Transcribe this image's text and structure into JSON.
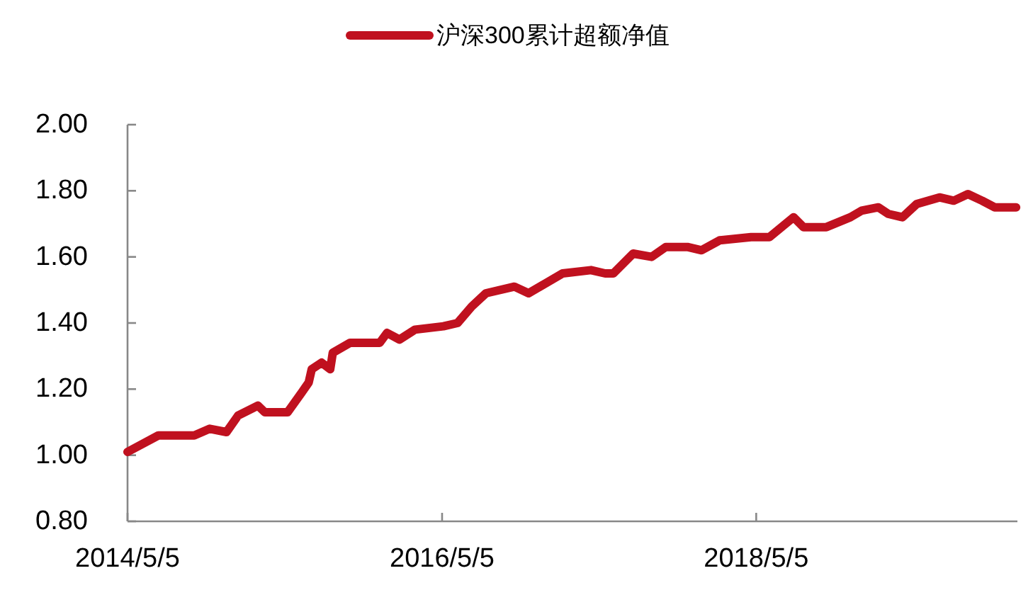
{
  "chart_data": {
    "type": "line",
    "legend": "top",
    "grid": false,
    "marker": "none",
    "line_style": "solid",
    "x": [
      "2014-05-05",
      "2014-07-16",
      "2014-10-07",
      "2014-11-12",
      "2014-12-21",
      "2015-01-17",
      "2015-03-04",
      "2015-03-20",
      "2015-05-12",
      "2015-06-14",
      "2015-06-30",
      "2015-07-07",
      "2015-07-30",
      "2015-08-19",
      "2015-08-25",
      "2015-10-04",
      "2015-12-12",
      "2015-12-29",
      "2016-01-27",
      "2016-03-03",
      "2016-05-08",
      "2016-06-10",
      "2016-07-13",
      "2016-08-15",
      "2016-10-20",
      "2016-11-22",
      "2017-02-09",
      "2017-04-16",
      "2017-05-19",
      "2017-06-07",
      "2017-07-23",
      "2017-09-04",
      "2017-10-07",
      "2017-11-26",
      "2017-12-29",
      "2018-02-09",
      "2018-04-23",
      "2018-06-05",
      "2018-07-31",
      "2018-08-23",
      "2018-10-15",
      "2018-12-10",
      "2019-01-05",
      "2019-02-13",
      "2019-03-08",
      "2019-04-10",
      "2019-05-13",
      "2019-07-05",
      "2019-08-07",
      "2019-09-09",
      "2019-10-12",
      "2019-11-10",
      "2019-12-30"
    ],
    "series": [
      {
        "name": "沪深300累计超额净值",
        "color": "#c0111f",
        "values": [
          1.01,
          1.06,
          1.06,
          1.08,
          1.07,
          1.12,
          1.15,
          1.13,
          1.13,
          1.19,
          1.22,
          1.26,
          1.28,
          1.26,
          1.31,
          1.34,
          1.34,
          1.37,
          1.35,
          1.38,
          1.39,
          1.4,
          1.45,
          1.49,
          1.51,
          1.49,
          1.55,
          1.56,
          1.55,
          1.55,
          1.61,
          1.6,
          1.63,
          1.63,
          1.62,
          1.65,
          1.66,
          1.66,
          1.72,
          1.69,
          1.69,
          1.72,
          1.74,
          1.75,
          1.73,
          1.72,
          1.76,
          1.78,
          1.77,
          1.79,
          1.77,
          1.75,
          1.75
        ]
      }
    ],
    "xlim": [
      "2014-05-05",
      "2020-01-02"
    ],
    "xticks": [
      {
        "value": "2014-05-05",
        "label": "2014/5/5"
      },
      {
        "value": "2016-05-05",
        "label": "2016/5/5"
      },
      {
        "value": "2018-05-05",
        "label": "2018/5/5"
      }
    ],
    "ylim": [
      0.8,
      2.0
    ],
    "yticks": [
      {
        "value": 0.8,
        "label": "0.80"
      },
      {
        "value": 1.0,
        "label": "1.00"
      },
      {
        "value": 1.2,
        "label": "1.20"
      },
      {
        "value": 1.4,
        "label": "1.40"
      },
      {
        "value": 1.6,
        "label": "1.60"
      },
      {
        "value": 1.8,
        "label": "1.80"
      },
      {
        "value": 2.0,
        "label": "2.00"
      }
    ]
  }
}
